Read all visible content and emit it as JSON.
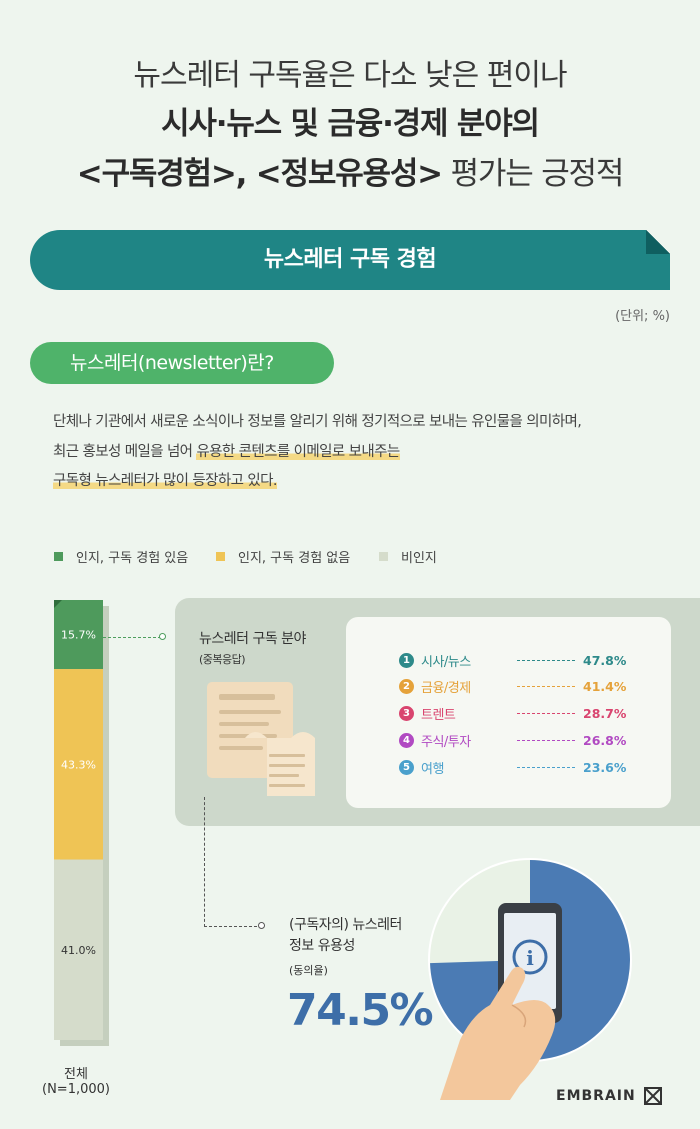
{
  "headline": {
    "line1": "뉴스레터 구독율은 다소 낮은 편이나",
    "line2": "시사·뉴스 및 금융·경제 분야의",
    "line3_bold": "<구독경험>, <정보유용성>",
    "line3_rest": " 평가는 긍정적"
  },
  "banner": {
    "title": "뉴스레터 구독 경험"
  },
  "unit": "(단위; %)",
  "definition": {
    "title": "뉴스레터(newsletter)란?",
    "line1": "단체나 기관에서 새로운 소식이나 정보를 알리기 위해 정기적으로 보내는 유인물을 의미하며,",
    "line2_pre": "최근 홍보성 메일을 넘어 ",
    "line2_hl": "유용한 콘텐츠를 이메일로 보내주는",
    "line3_hl": "구독형 뉴스레터가 많이 등장하고 있다."
  },
  "legend": [
    {
      "label": "인지, 구독 경험 있음",
      "color": "#4e9a5c"
    },
    {
      "label": "인지, 구독 경험 없음",
      "color": "#efc455"
    },
    {
      "label": "비인지",
      "color": "#d5dccb"
    }
  ],
  "chart_data": {
    "type": "bar",
    "stacked": true,
    "categories": [
      "전체 (N=1,000)"
    ],
    "series": [
      {
        "name": "인지, 구독 경험 있음",
        "values": [
          15.7
        ],
        "label": "15.7%"
      },
      {
        "name": "인지, 구독 경험 없음",
        "values": [
          43.3
        ],
        "label": "43.3%"
      },
      {
        "name": "비인지",
        "values": [
          41.0
        ],
        "label": "41.0%"
      }
    ],
    "colors": [
      "#4e9a5c",
      "#efc455",
      "#d5dccb"
    ],
    "ylim": [
      0,
      100
    ],
    "unit": "%"
  },
  "total_label": {
    "line1": "전체",
    "line2": "(N=1,000)"
  },
  "fields": {
    "title": "뉴스레터 구독 분야",
    "sub": "(중복응답)",
    "items": [
      {
        "rank": "1",
        "label": "시사/뉴스",
        "value": "47.8%",
        "color": "#2e8a8a"
      },
      {
        "rank": "2",
        "label": "금융/경제",
        "value": "41.4%",
        "color": "#e5a23a"
      },
      {
        "rank": "3",
        "label": "트렌트",
        "value": "28.7%",
        "color": "#d9456f"
      },
      {
        "rank": "4",
        "label": "주식/투자",
        "value": "26.8%",
        "color": "#b14ac2"
      },
      {
        "rank": "5",
        "label": "여행",
        "value": "23.6%",
        "color": "#4aa0cc"
      }
    ]
  },
  "usefulness": {
    "title1": "(구독자의) 뉴스레터",
    "title2": "정보 유용성",
    "sub": "(동의율)",
    "value": "74.5%",
    "pie": {
      "value": 74.5,
      "color": "#4b7bb4",
      "rest_color": "#e9f2e6"
    }
  },
  "brand": {
    "name": "EMBRAIN"
  }
}
